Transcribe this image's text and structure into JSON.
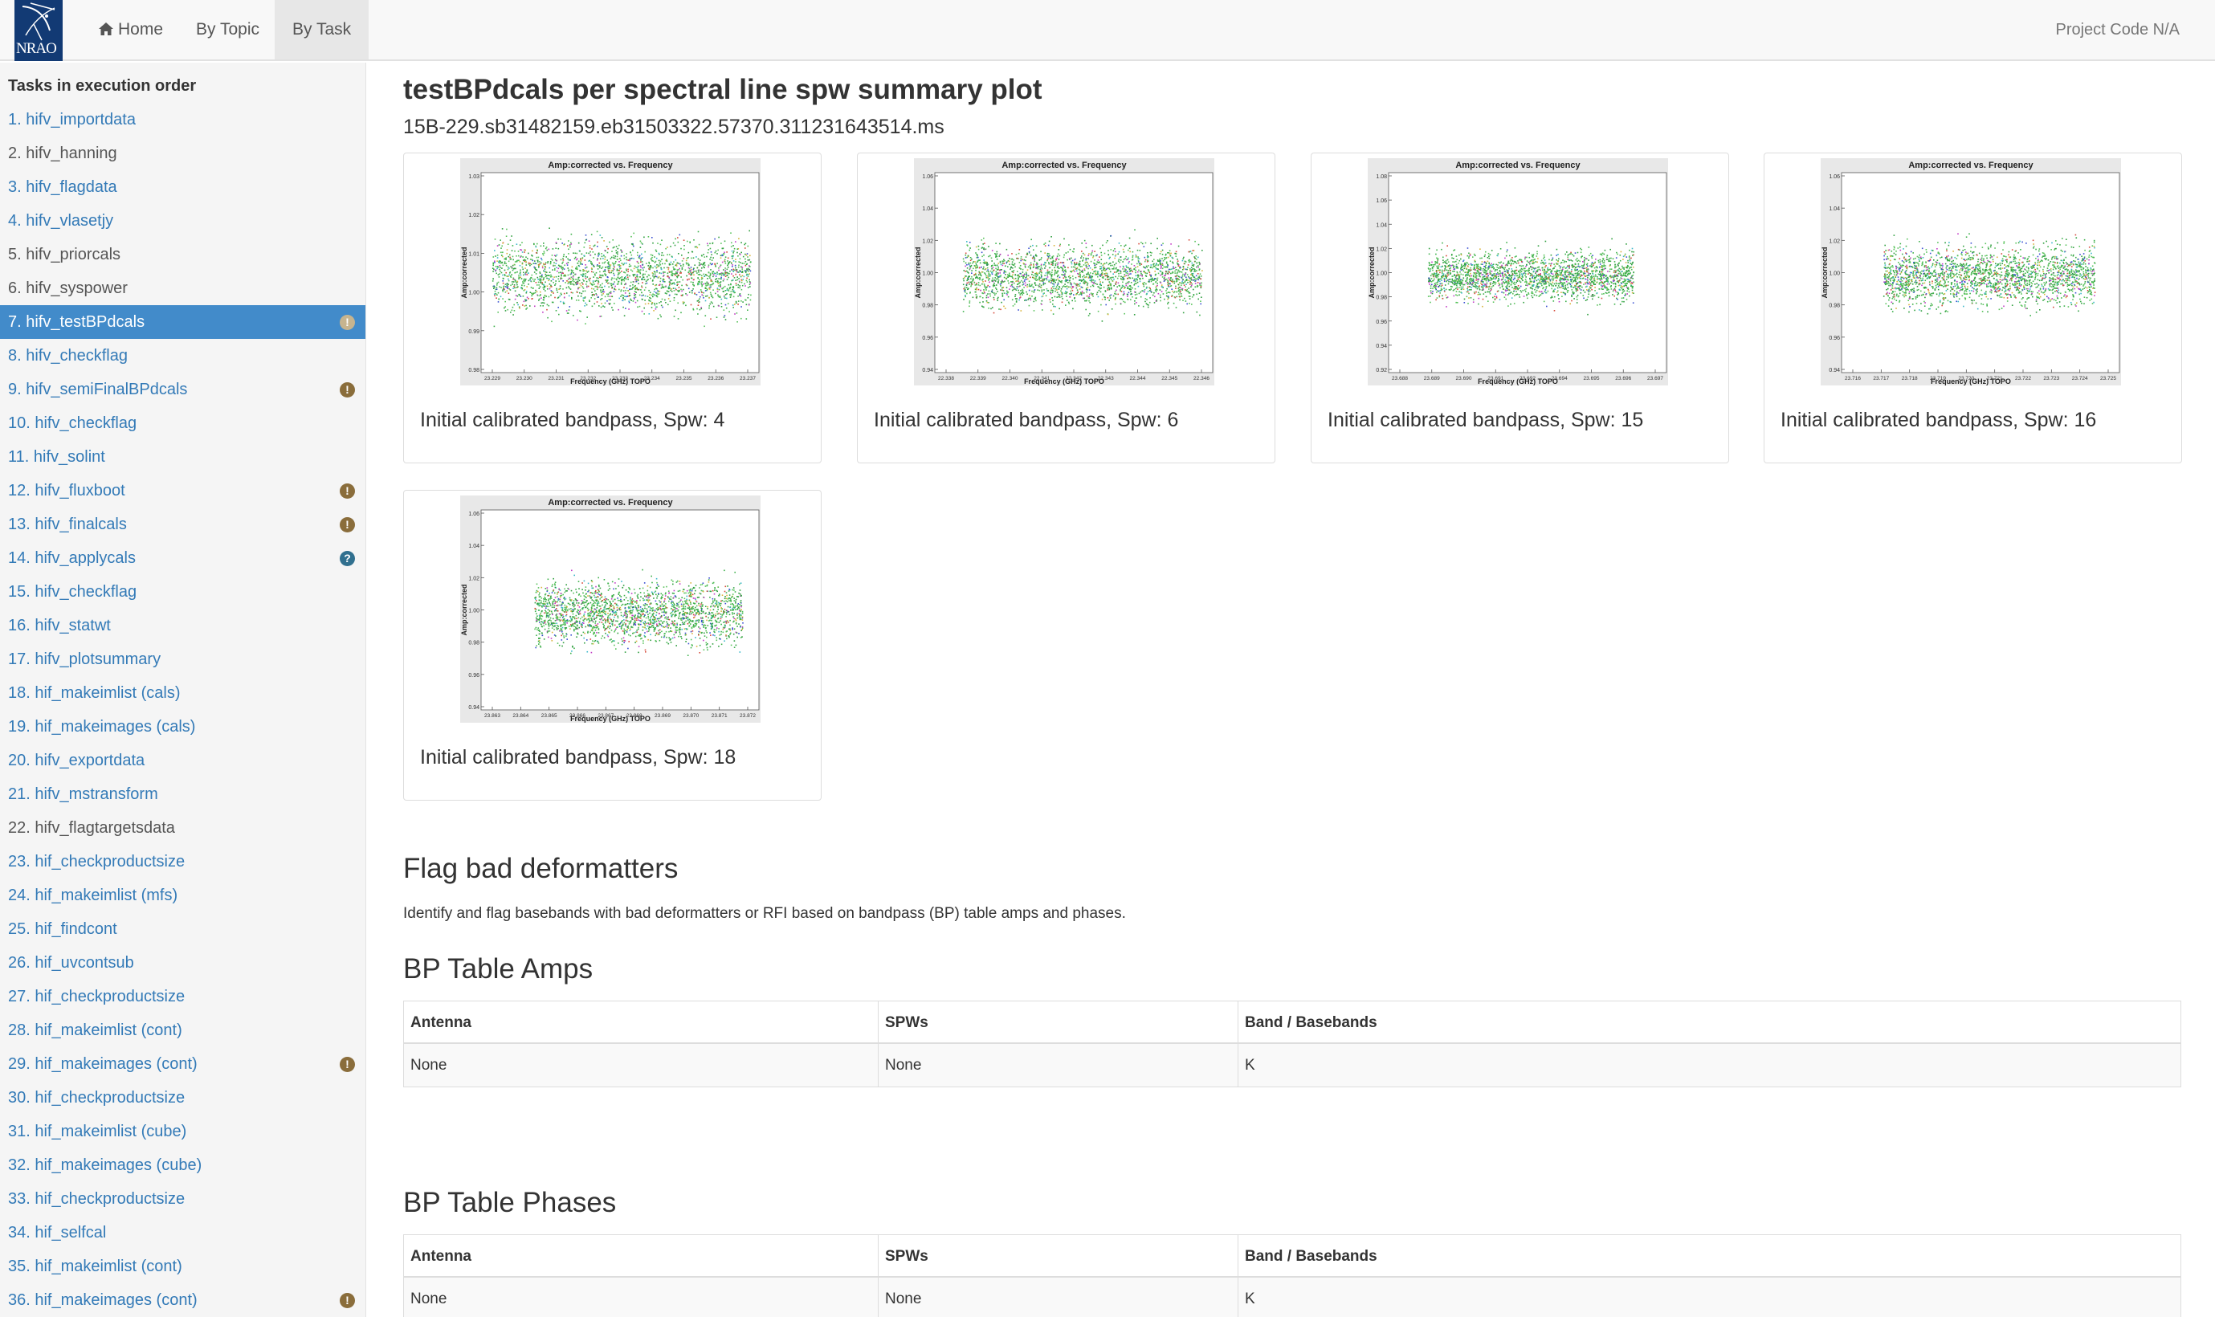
{
  "navbar": {
    "logo_text": "NRAO",
    "home_label": "Home",
    "by_topic_label": "By Topic",
    "by_task_label": "By Task",
    "project_code": "Project Code N/A"
  },
  "sidebar": {
    "title": "Tasks in execution order",
    "tasks": [
      {
        "label": "1. hifv_importdata",
        "state": "link",
        "badge": ""
      },
      {
        "label": "2. hifv_hanning",
        "state": "plain",
        "badge": ""
      },
      {
        "label": "3. hifv_flagdata",
        "state": "link",
        "badge": ""
      },
      {
        "label": "4. hifv_vlasetjy",
        "state": "link",
        "badge": ""
      },
      {
        "label": "5. hifv_priorcals",
        "state": "plain",
        "badge": ""
      },
      {
        "label": "6. hifv_syspower",
        "state": "plain",
        "badge": ""
      },
      {
        "label": "7. hifv_testBPdcals",
        "state": "active",
        "badge": "warning"
      },
      {
        "label": "8. hifv_checkflag",
        "state": "link",
        "badge": ""
      },
      {
        "label": "9. hifv_semiFinalBPdcals",
        "state": "link",
        "badge": "warning"
      },
      {
        "label": "10. hifv_checkflag",
        "state": "link",
        "badge": ""
      },
      {
        "label": "11. hifv_solint",
        "state": "link",
        "badge": ""
      },
      {
        "label": "12. hifv_fluxboot",
        "state": "link",
        "badge": "warning"
      },
      {
        "label": "13. hifv_finalcals",
        "state": "link",
        "badge": "warning"
      },
      {
        "label": "14. hifv_applycals",
        "state": "link",
        "badge": "help"
      },
      {
        "label": "15. hifv_checkflag",
        "state": "link",
        "badge": ""
      },
      {
        "label": "16. hifv_statwt",
        "state": "link",
        "badge": ""
      },
      {
        "label": "17. hifv_plotsummary",
        "state": "link",
        "badge": ""
      },
      {
        "label": "18. hif_makeimlist (cals)",
        "state": "link",
        "badge": ""
      },
      {
        "label": "19. hif_makeimages (cals)",
        "state": "link",
        "badge": ""
      },
      {
        "label": "20. hifv_exportdata",
        "state": "link",
        "badge": ""
      },
      {
        "label": "21. hifv_mstransform",
        "state": "link",
        "badge": ""
      },
      {
        "label": "22. hifv_flagtargetsdata",
        "state": "plain",
        "badge": ""
      },
      {
        "label": "23. hif_checkproductsize",
        "state": "link",
        "badge": ""
      },
      {
        "label": "24. hif_makeimlist (mfs)",
        "state": "link",
        "badge": ""
      },
      {
        "label": "25. hif_findcont",
        "state": "link",
        "badge": ""
      },
      {
        "label": "26. hif_uvcontsub",
        "state": "link",
        "badge": ""
      },
      {
        "label": "27. hif_checkproductsize",
        "state": "link",
        "badge": ""
      },
      {
        "label": "28. hif_makeimlist (cont)",
        "state": "link",
        "badge": ""
      },
      {
        "label": "29. hif_makeimages (cont)",
        "state": "link",
        "badge": "warning"
      },
      {
        "label": "30. hif_checkproductsize",
        "state": "link",
        "badge": ""
      },
      {
        "label": "31. hif_makeimlist (cube)",
        "state": "link",
        "badge": ""
      },
      {
        "label": "32. hif_makeimages (cube)",
        "state": "link",
        "badge": ""
      },
      {
        "label": "33. hif_checkproductsize",
        "state": "link",
        "badge": ""
      },
      {
        "label": "34. hif_selfcal",
        "state": "link",
        "badge": ""
      },
      {
        "label": "35. hif_makeimlist (cont)",
        "state": "link",
        "badge": ""
      },
      {
        "label": "36. hif_makeimages (cont)",
        "state": "link",
        "badge": "warning"
      }
    ]
  },
  "main": {
    "title": "testBPdcals per spectral line spw summary plot",
    "ms_name": "15B-229.sb31482159.eb31503322.57370.311231643514.ms",
    "plot_title": "Amp:corrected vs. Frequency",
    "plot_xlabel": "Frequency (GHz) TOPO",
    "plot_ylabel": "Amp:corrected",
    "plots": [
      {
        "caption": "Initial calibrated bandpass, Spw: 4",
        "yticks": [
          "1.03",
          "1.02",
          "1.01",
          "1.00",
          "0.99",
          "0.98"
        ],
        "xticks": [
          "23.229",
          "23.230",
          "23.231",
          "23.232",
          "23.233",
          "23.234",
          "23.235",
          "23.236",
          "23.237"
        ]
      },
      {
        "caption": "Initial calibrated bandpass, Spw: 6",
        "yticks": [
          "1.06",
          "1.04",
          "1.02",
          "1.00",
          "0.98",
          "0.96",
          "0.94"
        ],
        "xticks": [
          "22.338",
          "22.339",
          "22.340",
          "22.341",
          "22.342",
          "22.343",
          "22.344",
          "22.345",
          "22.346"
        ]
      },
      {
        "caption": "Initial calibrated bandpass, Spw: 15",
        "yticks": [
          "1.08",
          "1.06",
          "1.04",
          "1.02",
          "1.00",
          "0.98",
          "0.96",
          "0.94",
          "0.92"
        ],
        "xticks": [
          "23.688",
          "23.689",
          "23.690",
          "23.691",
          "23.692",
          "23.694",
          "23.695",
          "23.696",
          "23.697"
        ]
      },
      {
        "caption": "Initial calibrated bandpass, Spw: 16",
        "yticks": [
          "1.06",
          "1.04",
          "1.02",
          "1.00",
          "0.98",
          "0.96",
          "0.94"
        ],
        "xticks": [
          "23.716",
          "23.717",
          "23.718",
          "23.719",
          "23.720",
          "23.721",
          "23.722",
          "23.723",
          "23.724",
          "23.725"
        ]
      },
      {
        "caption": "Initial calibrated bandpass, Spw: 18",
        "yticks": [
          "1.06",
          "1.04",
          "1.02",
          "1.00",
          "0.98",
          "0.96",
          "0.94"
        ],
        "xticks": [
          "23.863",
          "23.864",
          "23.865",
          "23.866",
          "23.867",
          "23.868",
          "23.869",
          "23.870",
          "23.871",
          "23.872"
        ]
      }
    ],
    "deformatters": {
      "heading": "Flag bad deformatters",
      "description": "Identify and flag basebands with bad deformatters or RFI based on bandpass (BP) table amps and phases."
    },
    "amps_table": {
      "heading": "BP Table Amps",
      "columns": [
        "Antenna",
        "SPWs",
        "Band / Basebands"
      ],
      "row": [
        "None",
        "None",
        "K"
      ]
    },
    "phases_table": {
      "heading": "BP Table Phases",
      "columns": [
        "Antenna",
        "SPWs",
        "Band / Basebands"
      ],
      "row": [
        "None",
        "None",
        "K"
      ]
    }
  },
  "colors": {
    "link": "#337ab7",
    "active_bg": "#428bca",
    "warning_badge": "#8a6d3b",
    "help_badge": "#31708f",
    "logo_bg": "#123a74"
  }
}
